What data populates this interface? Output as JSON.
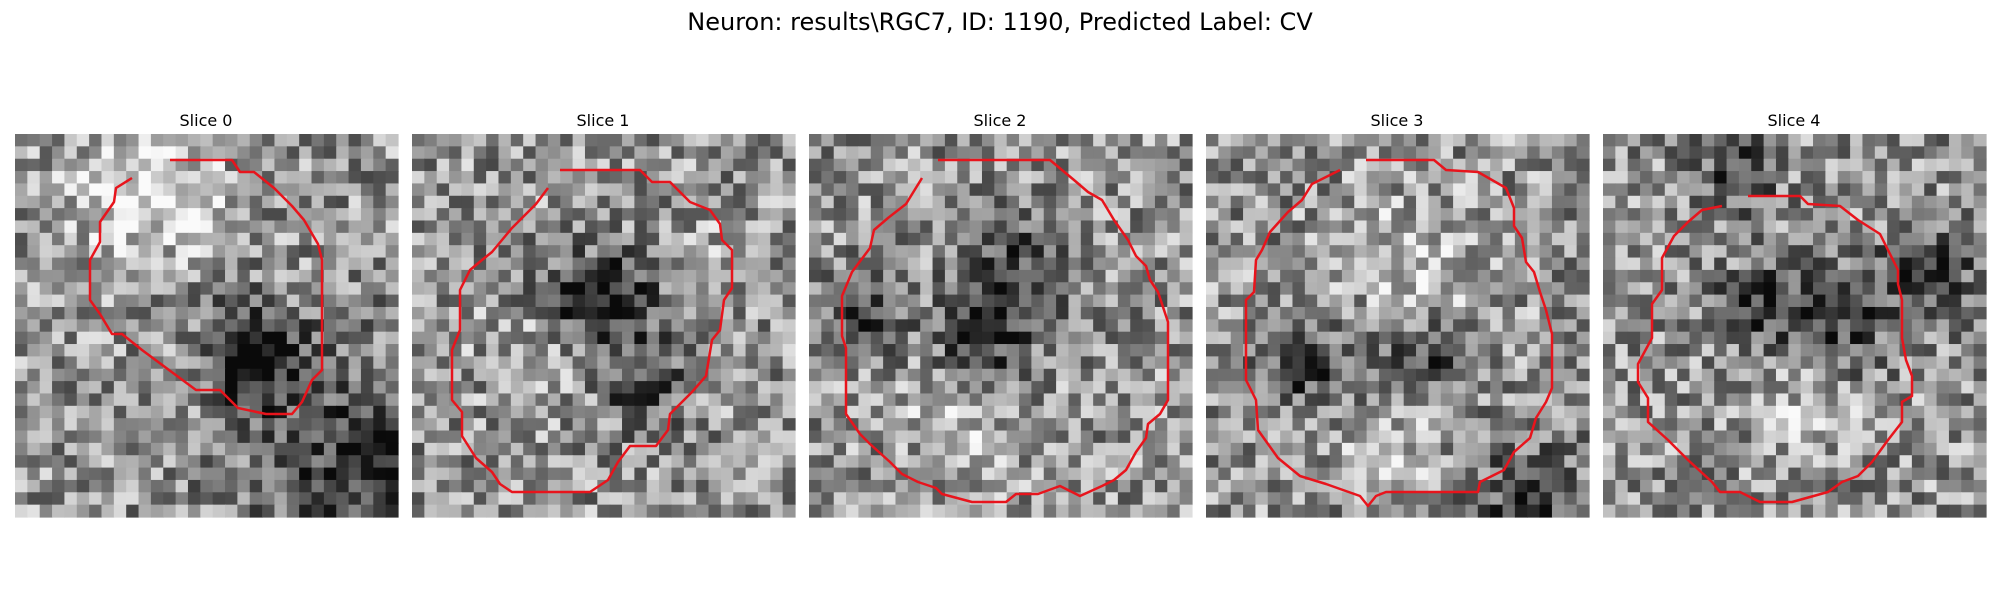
{
  "figure": {
    "title": "Neuron: results\\RGC7, ID: 1190, Predicted Label: CV",
    "contour_color": "#e8141c",
    "colormap": "gray",
    "panels": [
      {
        "title": "Slice 0"
      },
      {
        "title": "Slice 1"
      },
      {
        "title": "Slice 2"
      },
      {
        "title": "Slice 3"
      },
      {
        "title": "Slice 4"
      }
    ]
  }
}
